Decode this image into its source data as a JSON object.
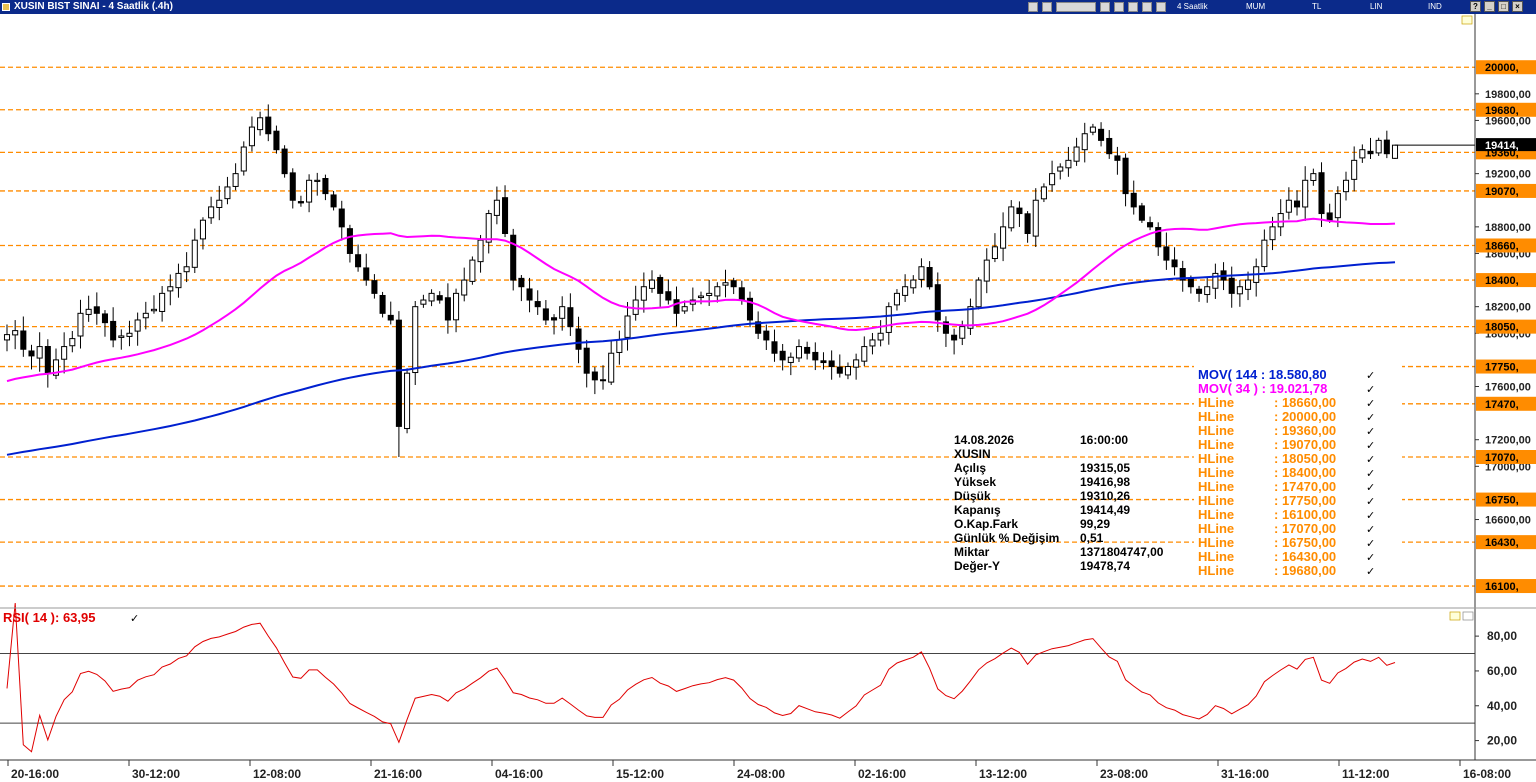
{
  "window": {
    "title": "XUSIN BIST SINAI - 4 Saatlik (.4h)",
    "toolbar": {
      "period": "4 Saatlik",
      "candle": "MUM",
      "currency": "TL",
      "scale": "LIN",
      "indicator": "IND"
    },
    "colors": {
      "titlebar": "#0b2a8a",
      "hline": "#ff8c00",
      "mov144": "#0020d0",
      "mov34": "#ff00ff",
      "rsi": "#e00000"
    }
  },
  "chart_data": [
    {
      "type": "candlestick",
      "ylim": [
        15950,
        20400
      ],
      "y_ticks": [
        "19800,00",
        "19600,00",
        "19200,00",
        "18800,00",
        "18600,00",
        "18200,00",
        "18000,00",
        "17600,00",
        "17200,00",
        "17000,00",
        "16600,00"
      ],
      "last_price_label": "19414,",
      "x_tick_labels": [
        "20-16:00",
        "30-12:00",
        "12-08:00",
        "21-16:00",
        "04-16:00",
        "15-12:00",
        "24-08:00",
        "02-16:00",
        "13-12:00",
        "23-08:00",
        "31-16:00",
        "11-12:00",
        "16-08:00"
      ],
      "hlines": [
        {
          "value": 20000,
          "label": "20000,"
        },
        {
          "value": 19680,
          "label": "19680,"
        },
        {
          "value": 19360,
          "label": "19360,"
        },
        {
          "value": 19070,
          "label": "19070,"
        },
        {
          "value": 18660,
          "label": "18660,"
        },
        {
          "value": 18400,
          "label": "18400,"
        },
        {
          "value": 18050,
          "label": "18050,"
        },
        {
          "value": 17750,
          "label": "17750,"
        },
        {
          "value": 17470,
          "label": "17470,"
        },
        {
          "value": 17070,
          "label": "17070,"
        },
        {
          "value": 16750,
          "label": "16750,"
        },
        {
          "value": 16430,
          "label": "16430,"
        },
        {
          "value": 16100,
          "label": "16100,"
        }
      ],
      "close": [
        17990,
        18020,
        17880,
        17830,
        17900,
        17700,
        17800,
        17900,
        17960,
        18150,
        18180,
        18150,
        18080,
        17950,
        17980,
        18000,
        18100,
        18150,
        18180,
        18300,
        18350,
        18450,
        18500,
        18700,
        18850,
        18950,
        19000,
        19100,
        19200,
        19400,
        19550,
        19620,
        19500,
        19380,
        19200,
        19000,
        18980,
        19150,
        19150,
        19050,
        18950,
        18800,
        18600,
        18500,
        18400,
        18300,
        18150,
        18100,
        17300,
        17700,
        18200,
        18250,
        18300,
        18250,
        18100,
        18300,
        18400,
        18550,
        18700,
        18900,
        19000,
        18750,
        18400,
        18350,
        18250,
        18200,
        18100,
        18100,
        18200,
        18050,
        17880,
        17700,
        17650,
        17650,
        17850,
        17950,
        18130,
        18250,
        18350,
        18400,
        18300,
        18250,
        18150,
        18200,
        18250,
        18280,
        18300,
        18350,
        18380,
        18350,
        18250,
        18100,
        18000,
        17950,
        17850,
        17800,
        17820,
        17900,
        17850,
        17800,
        17780,
        17750,
        17700,
        17750,
        17800,
        17900,
        17950,
        18000,
        18200,
        18300,
        18350,
        18400,
        18500,
        18350,
        18100,
        18000,
        17950,
        18050,
        18200,
        18400,
        18550,
        18650,
        18800,
        18950,
        18900,
        18750,
        19000,
        19100,
        19200,
        19250,
        19300,
        19400,
        19500,
        19550,
        19450,
        19350,
        19300,
        19050,
        18950,
        18850,
        18800,
        18650,
        18550,
        18500,
        18400,
        18350,
        18300,
        18350,
        18450,
        18400,
        18300,
        18350,
        18400,
        18500,
        18700,
        18800,
        18900,
        19000,
        18950,
        19150,
        19200,
        18900,
        18850,
        19050,
        19150,
        19300,
        19380,
        19350,
        19450,
        19350,
        19414
      ]
    },
    {
      "type": "line",
      "title": "RSI( 14 ): 63,95",
      "ylim": [
        10,
        95
      ],
      "y_ticks": [
        "80,00",
        "60,00",
        "40,00",
        "20,00"
      ],
      "reference_lines": [
        70,
        30
      ]
    }
  ],
  "legend": {
    "mov144": "MOV( 144 : 18.580,80",
    "mov34": "MOV( 34 ) : 19.021,78",
    "hlines": [
      {
        "name": "HLine",
        "value": ": 18660,00"
      },
      {
        "name": "HLine",
        "value": ": 20000,00"
      },
      {
        "name": "HLine",
        "value": ": 19360,00"
      },
      {
        "name": "HLine",
        "value": ": 19070,00"
      },
      {
        "name": "HLine",
        "value": ": 18050,00"
      },
      {
        "name": "HLine",
        "value": ": 18400,00"
      },
      {
        "name": "HLine",
        "value": ": 17470,00"
      },
      {
        "name": "HLine",
        "value": ": 17750,00"
      },
      {
        "name": "HLine",
        "value": ": 16100,00"
      },
      {
        "name": "HLine",
        "value": ": 17070,00"
      },
      {
        "name": "HLine",
        "value": ": 16750,00"
      },
      {
        "name": "HLine",
        "value": ": 16430,00"
      },
      {
        "name": "HLine",
        "value": ": 19680,00"
      }
    ]
  },
  "info": {
    "date": "14.08.2026",
    "time": "16:00:00",
    "symbol": "XUSIN",
    "rows": [
      {
        "label": "Açılış",
        "value": "19315,05"
      },
      {
        "label": "Yüksek",
        "value": "19416,98"
      },
      {
        "label": "Düşük",
        "value": "19310,26"
      },
      {
        "label": "Kapanış",
        "value": "19414,49"
      },
      {
        "label": "O.Kap.Fark",
        "value": "99,29"
      },
      {
        "label": "Günlük % Değişim",
        "value": "0,51"
      },
      {
        "label": "Miktar",
        "value": "1371804747,00"
      },
      {
        "label": "Değer-Y",
        "value": "19478,74"
      }
    ]
  }
}
